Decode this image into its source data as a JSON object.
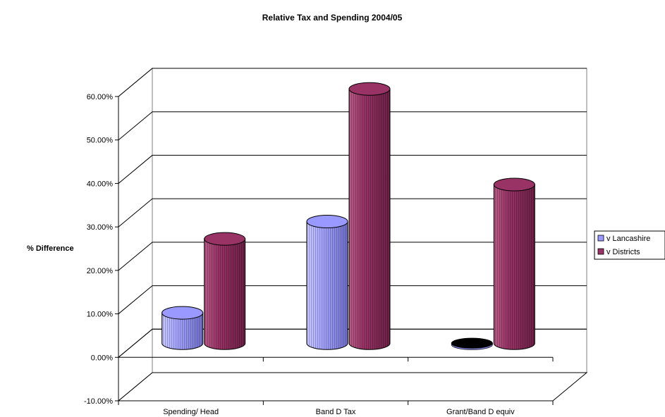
{
  "chart_data": {
    "type": "bar",
    "style": "3d-cylinder",
    "title": "Relative Tax and Spending 2004/05",
    "xlabel": "",
    "ylabel": "% Difference",
    "ylim": [
      -0.1,
      0.6
    ],
    "ytick_step": 0.1,
    "yticks": [
      "-10.00%",
      "0.00%",
      "10.00%",
      "20.00%",
      "30.00%",
      "40.00%",
      "50.00%",
      "60.00%"
    ],
    "grid": true,
    "legend_position": "right",
    "categories": [
      "Spending/ Head",
      "Band D Tax",
      "Grant/Band D equiv"
    ],
    "series": [
      {
        "name": "v Lancashire",
        "color": "#9999ff",
        "values": [
          0.07,
          0.28,
          0.0
        ]
      },
      {
        "name": "v Districts",
        "color": "#993366",
        "values": [
          0.24,
          0.585,
          0.365
        ]
      }
    ]
  }
}
